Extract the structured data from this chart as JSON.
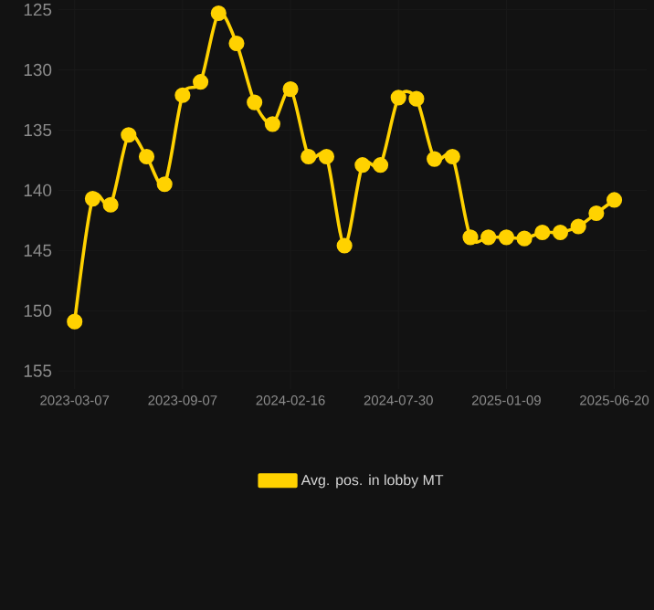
{
  "chart_data": {
    "type": "line",
    "categories": [
      "2023-03-07",
      null,
      null,
      null,
      null,
      null,
      "2023-09-07",
      null,
      null,
      null,
      null,
      null,
      "2024-02-16",
      null,
      null,
      null,
      null,
      null,
      "2024-07-30",
      null,
      null,
      null,
      null,
      null,
      "2025-01-09",
      null,
      null,
      null,
      null,
      null,
      "2025-06-20"
    ],
    "series": [
      {
        "name": "Avg. pos. in lobby MT",
        "color": "#ffd200",
        "values": [
          150.9,
          140.7,
          141.2,
          135.4,
          137.2,
          139.5,
          132.1,
          131.0,
          125.3,
          127.8,
          132.7,
          134.5,
          131.6,
          137.2,
          137.2,
          144.6,
          137.9,
          137.9,
          132.3,
          132.4,
          137.4,
          137.2,
          143.9,
          143.9,
          143.9,
          144.0,
          143.5,
          143.5,
          143.0,
          141.9,
          140.8
        ]
      }
    ],
    "ylim": [
      156.5,
      124.2
    ],
    "yticks": [
      125,
      130,
      135,
      140,
      145,
      150,
      155
    ],
    "grid": true,
    "legend": "bottom",
    "marker": "circle",
    "line_style": "solid"
  }
}
